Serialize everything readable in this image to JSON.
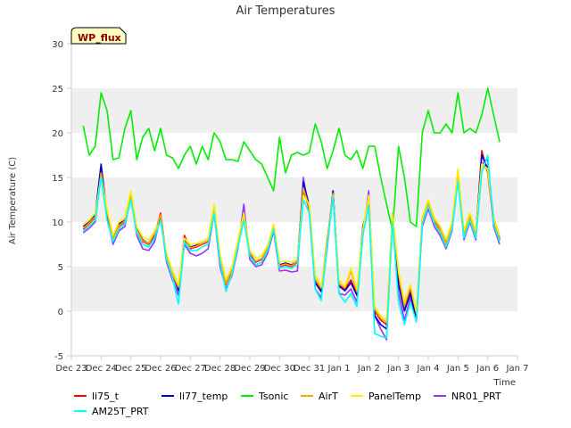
{
  "chart_data": {
    "type": "line",
    "title": "Air Temperatures",
    "xlabel": "Time",
    "ylabel": "Air Temperature (C)",
    "badge": "WP_flux",
    "ylim": [
      -5,
      30
    ],
    "yticks": [
      -5,
      0,
      5,
      10,
      15,
      20,
      25,
      30
    ],
    "xlim": [
      0,
      15
    ],
    "xticks": [
      {
        "x": 0,
        "label": "Dec 23"
      },
      {
        "x": 1,
        "label": "Dec 24"
      },
      {
        "x": 2,
        "label": "Dec 25"
      },
      {
        "x": 3,
        "label": "Dec 26"
      },
      {
        "x": 4,
        "label": "Dec 27"
      },
      {
        "x": 5,
        "label": "Dec 28"
      },
      {
        "x": 6,
        "label": "Dec 29"
      },
      {
        "x": 7,
        "label": "Dec 30"
      },
      {
        "x": 8,
        "label": "Dec 31"
      },
      {
        "x": 9,
        "label": "Jan 1"
      },
      {
        "x": 10,
        "label": "Jan 2"
      },
      {
        "x": 11,
        "label": "Jan 3"
      },
      {
        "x": 12,
        "label": "Jan 4"
      },
      {
        "x": 13,
        "label": "Jan 5"
      },
      {
        "x": 14,
        "label": "Jan 6"
      },
      {
        "x": 15,
        "label": "Jan 7"
      }
    ],
    "grid_bands": "alternating gray horizontal bands",
    "legend_position": "bottom",
    "x": [
      0.4,
      0.6,
      0.8,
      1.0,
      1.2,
      1.4,
      1.6,
      1.8,
      2.0,
      2.2,
      2.4,
      2.6,
      2.8,
      3.0,
      3.2,
      3.4,
      3.6,
      3.8,
      4.0,
      4.2,
      4.4,
      4.6,
      4.8,
      5.0,
      5.2,
      5.4,
      5.6,
      5.8,
      6.0,
      6.2,
      6.4,
      6.6,
      6.8,
      7.0,
      7.2,
      7.4,
      7.6,
      7.8,
      8.0,
      8.2,
      8.4,
      8.6,
      8.8,
      9.0,
      9.2,
      9.4,
      9.6,
      9.8,
      10.0,
      10.2,
      10.4,
      10.6,
      10.8,
      11.0,
      11.2,
      11.4,
      11.6,
      11.8,
      12.0,
      12.2,
      12.4,
      12.6,
      12.8,
      13.0,
      13.2,
      13.4,
      13.6,
      13.8,
      14.0,
      14.2,
      14.4
    ],
    "series": [
      {
        "name": "li75_t",
        "color": "#ff0000",
        "values": [
          9.2,
          9.8,
          10.5,
          16.0,
          11.0,
          8.0,
          9.5,
          10.0,
          13.0,
          9.0,
          7.8,
          7.5,
          8.5,
          11.0,
          6.0,
          4.0,
          2.5,
          8.5,
          7.0,
          7.2,
          7.5,
          7.8,
          11.5,
          6.0,
          3.0,
          4.5,
          7.5,
          10.5,
          6.5,
          5.5,
          5.8,
          7.0,
          9.5,
          5.0,
          5.2,
          5.0,
          5.5,
          13.5,
          11.5,
          3.5,
          2.5,
          8.0,
          13.0,
          3.0,
          2.5,
          3.5,
          2.0,
          9.0,
          12.5,
          0.0,
          -1.0,
          -1.5,
          10.5,
          4.0,
          0.5,
          2.5,
          -0.5,
          10.0,
          12.0,
          10.0,
          9.0,
          7.5,
          9.5,
          15.0,
          8.5,
          10.5,
          8.5,
          18.0,
          15.5,
          10.0,
          8.0
        ]
      },
      {
        "name": "li77_temp",
        "color": "#0000cc",
        "values": [
          9.5,
          10.0,
          10.8,
          16.5,
          10.8,
          8.2,
          9.8,
          10.2,
          13.2,
          9.2,
          8.0,
          7.6,
          8.6,
          10.5,
          6.2,
          4.2,
          2.3,
          8.0,
          7.2,
          7.4,
          7.6,
          7.9,
          11.8,
          5.8,
          3.2,
          4.6,
          7.8,
          10.8,
          6.4,
          5.6,
          5.9,
          7.1,
          9.6,
          5.2,
          5.4,
          5.2,
          5.6,
          14.5,
          11.8,
          3.2,
          2.2,
          7.5,
          13.5,
          2.8,
          2.3,
          3.2,
          1.8,
          9.5,
          12.0,
          -0.5,
          -1.5,
          -2.0,
          11.0,
          3.0,
          0.0,
          2.0,
          -1.0,
          10.5,
          12.2,
          10.2,
          9.2,
          7.8,
          9.8,
          15.5,
          8.8,
          10.8,
          8.8,
          17.5,
          16.0,
          10.5,
          8.2
        ]
      },
      {
        "name": "Tsonic",
        "color": "#00ee00",
        "values": [
          20.8,
          17.5,
          18.5,
          24.5,
          22.5,
          17.0,
          17.2,
          20.5,
          22.5,
          17.0,
          19.5,
          20.5,
          18.0,
          20.5,
          17.5,
          17.2,
          16.0,
          17.5,
          18.5,
          16.5,
          18.5,
          17.0,
          20.0,
          19.0,
          17.0,
          17.0,
          16.8,
          19.0,
          18.0,
          17.0,
          16.5,
          15.0,
          13.5,
          19.5,
          15.5,
          17.5,
          17.8,
          17.5,
          17.8,
          21.0,
          19.0,
          16.0,
          18.0,
          20.5,
          17.5,
          17.0,
          18.0,
          16.0,
          18.5,
          18.5,
          15.0,
          12.0,
          9.0,
          18.5,
          15.0,
          10.0,
          9.5,
          20.0,
          22.5,
          20.0,
          20.0,
          21.0,
          20.0,
          24.5,
          20.0,
          20.5,
          20.0,
          22.0,
          25.0,
          22.0,
          19.0
        ]
      },
      {
        "name": "AirT",
        "color": "#ffa500",
        "values": [
          9.3,
          9.9,
          10.6,
          15.5,
          11.2,
          8.1,
          9.6,
          10.1,
          13.1,
          9.1,
          7.9,
          7.6,
          8.7,
          10.8,
          6.1,
          4.1,
          2.7,
          8.2,
          7.1,
          7.3,
          7.6,
          7.9,
          11.6,
          6.1,
          3.1,
          4.6,
          7.6,
          10.6,
          6.6,
          5.6,
          5.9,
          7.1,
          9.6,
          5.1,
          5.3,
          5.1,
          5.6,
          13.8,
          11.6,
          3.6,
          2.6,
          7.8,
          13.2,
          3.1,
          2.6,
          4.5,
          2.2,
          9.2,
          12.6,
          0.2,
          -0.8,
          -1.2,
          10.8,
          4.2,
          0.6,
          2.8,
          -0.3,
          10.2,
          12.2,
          10.2,
          9.1,
          7.6,
          9.6,
          15.2,
          8.6,
          10.6,
          8.6,
          16.5,
          15.8,
          10.2,
          8.1
        ]
      },
      {
        "name": "PanelTemp",
        "color": "#ffee00",
        "values": [
          9.8,
          10.2,
          11.0,
          15.0,
          11.5,
          8.5,
          10.0,
          10.5,
          13.5,
          9.5,
          8.3,
          8.0,
          9.0,
          10.0,
          6.5,
          4.5,
          3.0,
          8.2,
          7.5,
          7.6,
          7.8,
          8.2,
          12.0,
          6.3,
          3.5,
          5.0,
          8.0,
          11.0,
          6.8,
          6.0,
          6.2,
          7.4,
          9.8,
          5.5,
          5.6,
          5.5,
          5.8,
          13.0,
          12.0,
          4.0,
          2.8,
          7.5,
          13.0,
          3.5,
          2.8,
          4.8,
          2.5,
          9.0,
          13.0,
          0.5,
          -0.5,
          -1.0,
          11.0,
          4.5,
          1.0,
          3.0,
          0.0,
          10.5,
          12.5,
          10.5,
          9.5,
          8.0,
          10.0,
          16.0,
          9.0,
          11.0,
          9.0,
          16.5,
          16.0,
          10.5,
          8.5
        ]
      },
      {
        "name": "NR01_PRT",
        "color": "#9933ff",
        "values": [
          8.8,
          9.3,
          10.0,
          15.5,
          10.5,
          7.5,
          9.0,
          9.5,
          13.0,
          8.5,
          7.0,
          6.8,
          7.8,
          10.5,
          5.5,
          3.5,
          1.8,
          7.5,
          6.5,
          6.2,
          6.5,
          7.0,
          11.0,
          5.0,
          2.5,
          4.0,
          7.0,
          12.0,
          5.8,
          5.0,
          5.2,
          6.5,
          9.0,
          4.5,
          4.6,
          4.4,
          4.5,
          15.0,
          11.0,
          2.5,
          1.5,
          7.0,
          13.5,
          2.0,
          1.8,
          2.5,
          1.0,
          8.5,
          13.5,
          -0.5,
          -2.0,
          -3.2,
          11.0,
          2.0,
          -1.0,
          1.5,
          -1.0,
          9.5,
          11.5,
          9.5,
          8.5,
          7.0,
          9.0,
          15.0,
          8.0,
          10.0,
          8.0,
          16.5,
          17.0,
          9.5,
          7.5
        ]
      },
      {
        "name": "AM25T_PRT",
        "color": "#00ffff",
        "values": [
          9.0,
          9.5,
          10.2,
          15.0,
          10.2,
          7.8,
          9.2,
          9.8,
          12.5,
          8.8,
          7.5,
          7.2,
          8.2,
          10.2,
          5.8,
          3.8,
          0.8,
          7.8,
          6.8,
          6.8,
          7.2,
          7.5,
          11.0,
          5.5,
          2.2,
          4.2,
          7.2,
          10.2,
          6.2,
          5.2,
          5.5,
          6.8,
          9.2,
          4.8,
          5.0,
          4.8,
          5.2,
          12.5,
          11.0,
          2.5,
          1.2,
          7.2,
          12.8,
          2.0,
          1.0,
          2.0,
          0.5,
          8.5,
          11.8,
          -2.5,
          -2.8,
          -3.0,
          10.0,
          1.0,
          -1.5,
          1.0,
          -1.2,
          9.8,
          11.8,
          9.8,
          8.8,
          7.2,
          9.2,
          14.5,
          8.2,
          10.2,
          8.2,
          15.5,
          17.5,
          9.8,
          7.8
        ]
      }
    ]
  }
}
